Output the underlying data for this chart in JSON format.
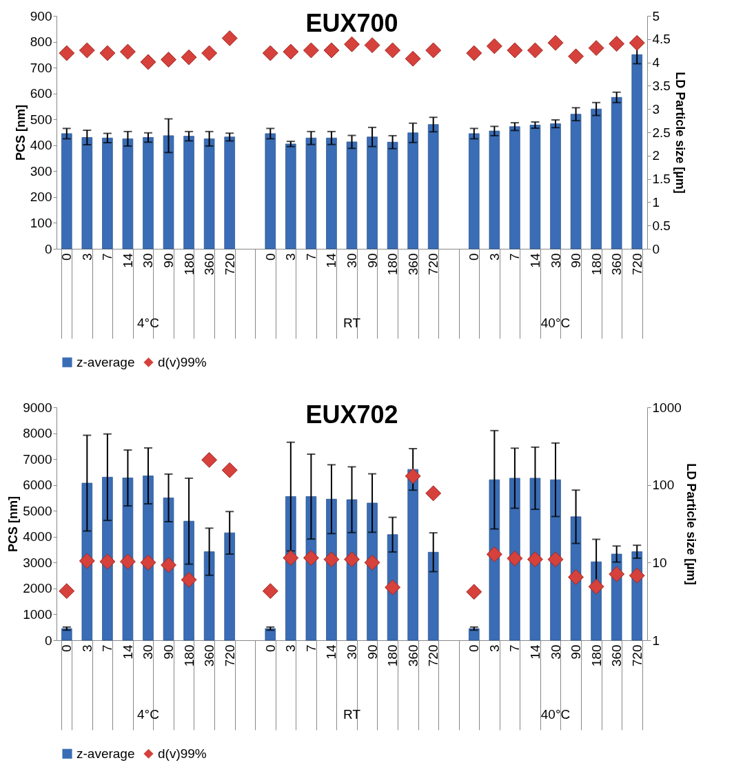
{
  "chart_data": [
    {
      "type": "bar",
      "title": "EUX700",
      "ylabel": "PCS [nm]",
      "y2label": "LD Particle size [µm]",
      "categories": [
        "0",
        "3",
        "7",
        "14",
        "30",
        "90",
        "180",
        "360",
        "720",
        null,
        "0",
        "3",
        "7",
        "14",
        "30",
        "90",
        "180",
        "360",
        "720",
        null,
        "0",
        "3",
        "7",
        "14",
        "30",
        "90",
        "180",
        "360",
        "720"
      ],
      "annotations": [
        "4°C",
        "RT",
        "40°C"
      ],
      "ylim": [
        0,
        900
      ],
      "yticks": [
        0,
        100,
        200,
        300,
        400,
        500,
        600,
        700,
        800,
        900
      ],
      "y2lim": [
        0,
        5
      ],
      "y2ticks": [
        0,
        0.5,
        1,
        1.5,
        2,
        2.5,
        3,
        3.5,
        4,
        4.5,
        5
      ],
      "legend": "bottom",
      "series": [
        {
          "name": "z-average",
          "type": "bar",
          "color": "#3a6db5",
          "values": [
            445,
            430,
            428,
            425,
            430,
            437,
            435,
            425,
            432,
            null,
            445,
            405,
            428,
            428,
            413,
            432,
            412,
            448,
            480,
            null,
            445,
            455,
            472,
            478,
            483,
            520,
            540,
            585,
            750
          ],
          "errors": [
            20,
            28,
            18,
            28,
            18,
            65,
            18,
            28,
            15,
            null,
            20,
            10,
            25,
            25,
            25,
            37,
            25,
            37,
            28,
            null,
            20,
            18,
            15,
            12,
            15,
            25,
            25,
            20,
            35
          ]
        },
        {
          "name": "d(v)99%",
          "type": "scatter",
          "axis": "y2",
          "marker": "diamond",
          "color": "#d6413c",
          "values": [
            4.2,
            4.26,
            4.2,
            4.23,
            4.01,
            4.06,
            4.11,
            4.2,
            4.52,
            null,
            4.2,
            4.23,
            4.26,
            4.26,
            4.39,
            4.37,
            4.26,
            4.08,
            4.26,
            null,
            4.2,
            4.35,
            4.26,
            4.26,
            4.42,
            4.13,
            4.31,
            4.4,
            4.42
          ]
        }
      ]
    },
    {
      "type": "bar",
      "title": "EUX702",
      "ylabel": "PCS [nm]",
      "y2label": "LD Particle size [µm]",
      "categories": [
        "0",
        "3",
        "7",
        "14",
        "30",
        "90",
        "180",
        "360",
        "720",
        null,
        "0",
        "3",
        "7",
        "14",
        "30",
        "90",
        "180",
        "360",
        "720",
        null,
        "0",
        "3",
        "7",
        "14",
        "30",
        "90",
        "180",
        "360",
        "720"
      ],
      "annotations": [
        "4°C",
        "RT",
        "40°C"
      ],
      "ylim": [
        0,
        9000
      ],
      "yticks": [
        0,
        1000,
        2000,
        3000,
        4000,
        5000,
        6000,
        7000,
        8000,
        9000
      ],
      "y2lim": [
        1,
        1000
      ],
      "y2ticks": [
        1,
        10,
        100,
        1000
      ],
      "log": "y2",
      "legend": "bottom",
      "series": [
        {
          "name": "z-average",
          "type": "bar",
          "color": "#3a6db5",
          "values": [
            450,
            6070,
            6300,
            6270,
            6350,
            5500,
            4600,
            3420,
            4150,
            null,
            450,
            5550,
            5550,
            5450,
            5430,
            5300,
            4080,
            6600,
            3400,
            null,
            450,
            6200,
            6260,
            6260,
            6200,
            4770,
            3030,
            3330,
            3420
          ],
          "errors": [
            60,
            1850,
            1670,
            1080,
            1080,
            920,
            1660,
            910,
            820,
            null,
            60,
            2100,
            1640,
            1330,
            1270,
            1130,
            670,
            800,
            750,
            null,
            60,
            1900,
            1160,
            1200,
            1420,
            1030,
            870,
            310,
            250
          ]
        },
        {
          "name": "d(v)99%",
          "type": "scatter",
          "axis": "y2",
          "marker": "diamond",
          "color": "#d6413c",
          "values": [
            4.3,
            10.5,
            10.3,
            10.3,
            10,
            9.3,
            6,
            210,
            155,
            null,
            4.3,
            11.5,
            11.5,
            11,
            11,
            10,
            4.8,
            130,
            78,
            null,
            4.2,
            12.8,
            11.3,
            11,
            11,
            6.5,
            4.9,
            7.1,
            6.8
          ]
        }
      ]
    }
  ]
}
